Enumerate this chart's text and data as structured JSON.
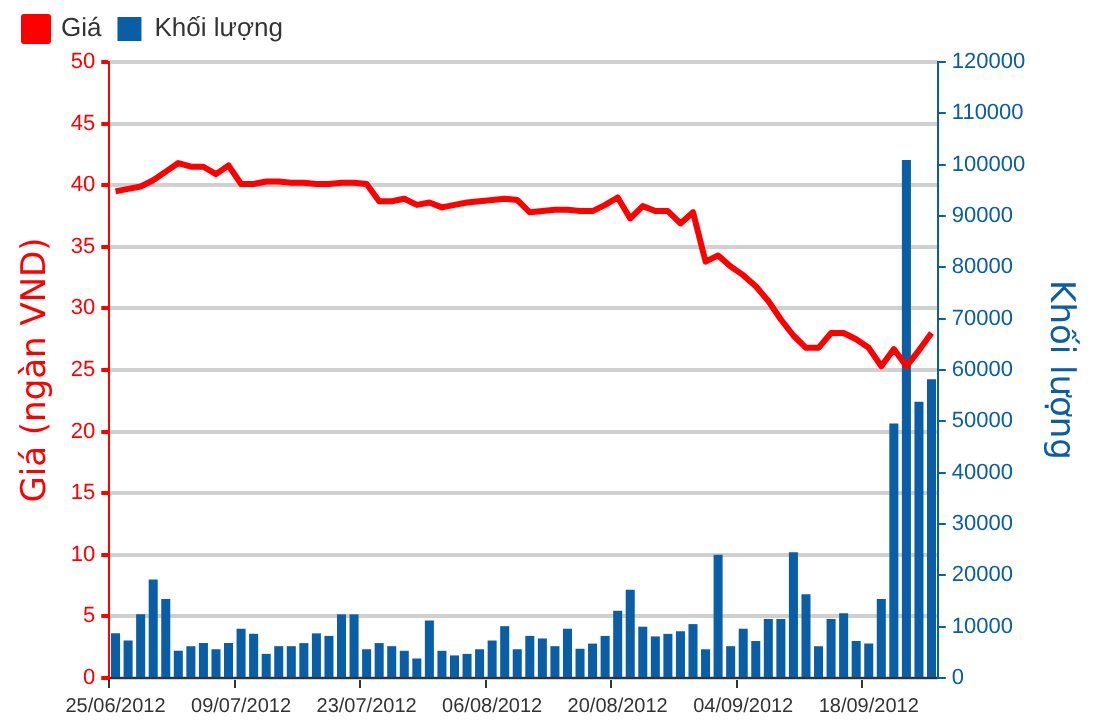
{
  "chart_data": {
    "type": "line",
    "ylabel": "Giá (ngàn VND)",
    "y2label": "Khối lượng",
    "categories": [
      "25/06/2012",
      null,
      null,
      null,
      null,
      null,
      null,
      null,
      null,
      null,
      "09/07/2012",
      null,
      null,
      null,
      null,
      null,
      null,
      null,
      null,
      null,
      "23/07/2012",
      null,
      null,
      null,
      null,
      null,
      null,
      null,
      null,
      null,
      "06/08/2012",
      null,
      null,
      null,
      null,
      null,
      null,
      null,
      null,
      null,
      "20/08/2012",
      null,
      null,
      null,
      null,
      null,
      null,
      null,
      null,
      null,
      "04/09/2012",
      null,
      null,
      null,
      null,
      null,
      null,
      null,
      null,
      null,
      "18/09/2012",
      null,
      null,
      null,
      null,
      null
    ],
    "series": [
      {
        "name": "Giá",
        "color": "#ff0000",
        "values": [
          39.5,
          39.7,
          39.9,
          40.4,
          41.1,
          41.8,
          41.5,
          41.5,
          40.9,
          41.6,
          40.1,
          40.1,
          40.3,
          40.3,
          40.2,
          40.2,
          40.1,
          40.1,
          40.2,
          40.2,
          40.1,
          38.7,
          38.7,
          38.9,
          38.4,
          38.6,
          38.2,
          38.4,
          38.6,
          38.7,
          38.8,
          38.9,
          38.8,
          37.8,
          37.9,
          38.0,
          38.0,
          37.9,
          37.9,
          38.4,
          39.0,
          37.3,
          38.3,
          37.9,
          37.9,
          36.9,
          37.8,
          33.8,
          34.3,
          33.4,
          32.7,
          31.8,
          30.6,
          29.1,
          27.8,
          26.8,
          26.8,
          28.0,
          28.0,
          27.5,
          26.8,
          25.3,
          26.7,
          25.3,
          26.6,
          28.0
        ]
      },
      {
        "name": "Khối lượng",
        "type": "bar",
        "axis": "y2",
        "color": "#0a5ea6",
        "values": [
          8700,
          7300,
          12400,
          19200,
          15400,
          5300,
          6200,
          6800,
          5600,
          6800,
          9600,
          8600,
          4700,
          6200,
          6200,
          6800,
          8700,
          8200,
          12400,
          12400,
          5600,
          6800,
          6200,
          5300,
          3800,
          11200,
          5300,
          4400,
          4700,
          5600,
          7300,
          10100,
          5600,
          8200,
          7700,
          6200,
          9600,
          5700,
          6700,
          8200,
          13100,
          17200,
          10000,
          8100,
          8600,
          9100,
          10500,
          5600,
          24000,
          6200,
          9600,
          7200,
          11500,
          11500,
          24500,
          16300,
          6200,
          11500,
          12600,
          7200,
          6700,
          15400,
          49600,
          100900,
          53800,
          58200
        ]
      }
    ],
    "ylim": [
      0,
      50
    ],
    "yticks": [
      0,
      5,
      10,
      15,
      20,
      25,
      30,
      35,
      40,
      45,
      50
    ],
    "y2lim": [
      0,
      120000
    ],
    "y2ticks": [
      0,
      10000,
      20000,
      30000,
      40000,
      50000,
      60000,
      70000,
      80000,
      90000,
      100000,
      110000,
      120000
    ],
    "grid": "y",
    "legend": "top left",
    "marker": "none"
  }
}
